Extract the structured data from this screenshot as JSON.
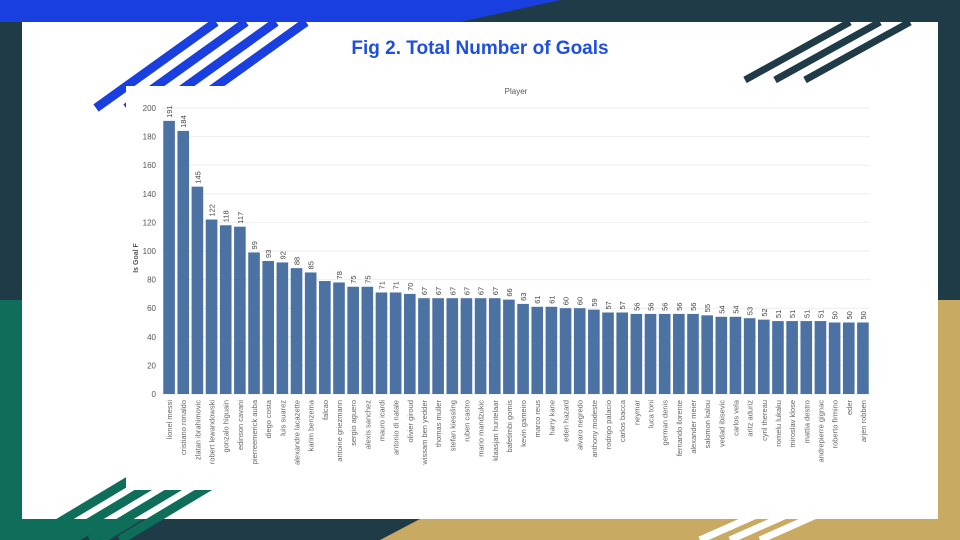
{
  "slide": {
    "title": "Fig 2. Total Number of Goals",
    "colors": {
      "navy": "#1f3b47",
      "blue": "#1a3fe0",
      "teal": "#0f6e5a",
      "gold": "#c9aa63",
      "bar": "#4c72a4"
    }
  },
  "chart_data": {
    "type": "bar",
    "title": "Player",
    "xlabel": "",
    "ylabel": "Is Goal F",
    "ylim": [
      0,
      200
    ],
    "yticks": [
      0,
      20,
      40,
      60,
      80,
      100,
      120,
      140,
      160,
      180,
      200
    ],
    "grid": true,
    "categories": [
      "lionel messi",
      "cristiano ronaldo",
      "zlatan ibrahimovic",
      "robert lewandowski",
      "gonzalo higuain",
      "edinson cavani",
      "pierreemerick auba",
      "diego costa",
      "luis suarez",
      "alexandre lacazette",
      "karim benzema",
      "falcao",
      "antoine griezmann",
      "sergio aguero",
      "alexis sanchez",
      "mauro icardi",
      "antonio di natale",
      "olivier giroud",
      "wissam ben yedder",
      "thomas muller",
      "stefan kiessling",
      "ruben castro",
      "mario mandzukic",
      "klaasjan huntelaar",
      "bafetimbi gomis",
      "kevin gameiro",
      "marco reus",
      "harry kane",
      "eden hazard",
      "alvaro negredo",
      "anthony modeste",
      "rodrigo palacio",
      "carlos bacca",
      "neymar",
      "luca toni",
      "german denis",
      "fernando llorente",
      "alexander meier",
      "salomon kalou",
      "vedad ibisevic",
      "carlos vela",
      "aritz aduriz",
      "cyril thereau",
      "romelu lukaku",
      "miroslav klose",
      "mattia destro",
      "andrepierre gignac",
      "roberto firmino",
      "eder",
      "arjen robben"
    ],
    "values": [
      191,
      184,
      145,
      122,
      118,
      117,
      99,
      93,
      92,
      88,
      85,
      79,
      78,
      75,
      75,
      71,
      71,
      70,
      67,
      67,
      67,
      67,
      67,
      67,
      66,
      63,
      61,
      61,
      60,
      60,
      59,
      57,
      57,
      56,
      56,
      56,
      56,
      56,
      55,
      54,
      54,
      53,
      52,
      51,
      51,
      51,
      51,
      50,
      50,
      50
    ],
    "data_labels": [
      "191",
      "184",
      "145",
      "122",
      "118",
      "117",
      "99",
      "93",
      "92",
      "88",
      "85",
      "",
      "78",
      "75",
      "75",
      "71",
      "71",
      "70",
      "67",
      "67",
      "67",
      "67",
      "67",
      "67",
      "66",
      "63",
      "61",
      "61",
      "60",
      "60",
      "59",
      "57",
      "57",
      "56",
      "56",
      "56",
      "56",
      "56",
      "55",
      "54",
      "54",
      "53",
      "52",
      "51",
      "51",
      "51",
      "51",
      "50",
      "50",
      "50"
    ]
  }
}
